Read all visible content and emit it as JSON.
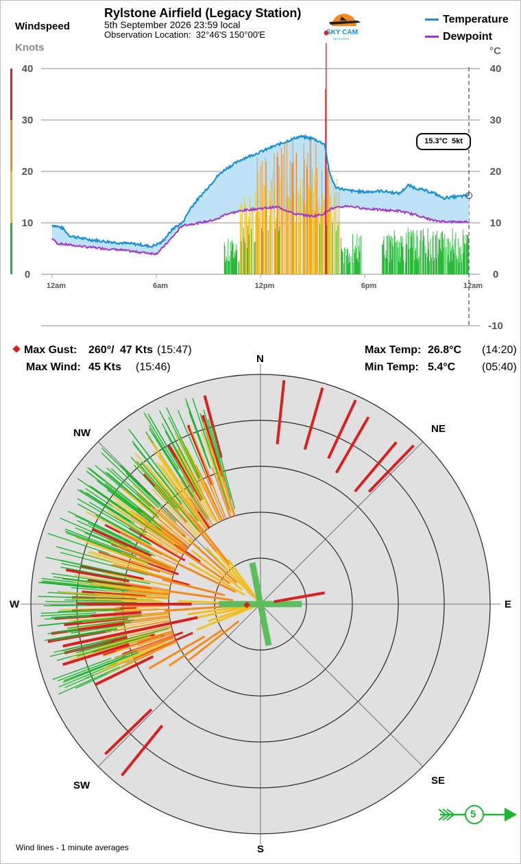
{
  "header": {
    "title": "Rylstone Airfield (Legacy Station)",
    "date_line": "5th September 2026  23:59 local",
    "location_label": "Observation Location:",
    "location_value": "32°46'S 150°00'E",
    "logo_text": "SKY CAM",
    "logo_subtext": "NETWORKS"
  },
  "left_axis": {
    "title": "Windspeed",
    "unit": "Knots"
  },
  "right_axis": {
    "unit": "°C"
  },
  "legend": [
    {
      "label": "Temperature",
      "color": "#1a8fd6"
    },
    {
      "label": "Dewpoint",
      "color": "#a335c8"
    }
  ],
  "readout": {
    "temp": "15.3°C",
    "wind": "5kt"
  },
  "stats": {
    "gust_label": "Max Gust:",
    "gust_dir": "260°/",
    "gust_speed": "47 Kts",
    "gust_time": "(15:47)",
    "wind_label": "Max Wind:",
    "wind_speed": "45 Kts",
    "wind_time": "(15:46)",
    "maxtemp_label": "Max Temp:",
    "maxtemp_value": "26.8°C",
    "maxtemp_time": "(14:20)",
    "mintemp_label": "Min Temp:",
    "mintemp_value": "5.4°C",
    "mintemp_time": "(05:40)"
  },
  "compass": [
    "N",
    "NE",
    "E",
    "SE",
    "S",
    "SW",
    "W",
    "NW"
  ],
  "wind_flag": {
    "speed": "5"
  },
  "footer": {
    "note": "Wind lines - 1 minute averages"
  },
  "colors": {
    "green": "#1db52f",
    "yellow": "#f0c020",
    "orange": "#f5891e",
    "red": "#d9201e",
    "temp": "#1a8fd6",
    "dew": "#a335c8",
    "fill": "#bfe3f6",
    "rose_bg": "#e0e0e0"
  },
  "chart_data": [
    {
      "type": "line",
      "x_ticks": [
        "12am",
        "6am",
        "12pm",
        "6pm",
        "12am"
      ],
      "x_range_hours": [
        0,
        24
      ],
      "y_left": {
        "label": "Knots",
        "ticks": [
          0,
          10,
          20,
          30,
          40
        ],
        "range": [
          0,
          40
        ]
      },
      "y_right": {
        "label": "°C",
        "ticks": [
          -10,
          0,
          10,
          20,
          30,
          40
        ],
        "range": [
          -10,
          40
        ]
      },
      "series": [
        {
          "name": "Temperature",
          "axis": "right",
          "points": [
            [
              0,
              9.6
            ],
            [
              0.6,
              9
            ],
            [
              1,
              7.5
            ],
            [
              2,
              6.8
            ],
            [
              3,
              6.4
            ],
            [
              4,
              6.1
            ],
            [
              5,
              5.8
            ],
            [
              5.7,
              5.4
            ],
            [
              6.3,
              6.2
            ],
            [
              7,
              9
            ],
            [
              7.5,
              10
            ],
            [
              8,
              13
            ],
            [
              9,
              17
            ],
            [
              9.5,
              19
            ],
            [
              10,
              20.5
            ],
            [
              11,
              22.5
            ],
            [
              12,
              23.8
            ],
            [
              13,
              25.2
            ],
            [
              14,
              26.5
            ],
            [
              14.3,
              26.8
            ],
            [
              15,
              26.4
            ],
            [
              15.7,
              25.3
            ],
            [
              15.95,
              20
            ],
            [
              16.3,
              17
            ],
            [
              17,
              16.3
            ],
            [
              18,
              16
            ],
            [
              19,
              16.2
            ],
            [
              20,
              15.7
            ],
            [
              20.5,
              17.3
            ],
            [
              21,
              16.7
            ],
            [
              22,
              15.8
            ],
            [
              22.5,
              14.8
            ],
            [
              23,
              15
            ],
            [
              24,
              15.3
            ]
          ]
        },
        {
          "name": "Dewpoint",
          "axis": "right",
          "points": [
            [
              0,
              7
            ],
            [
              0.3,
              6
            ],
            [
              1,
              5.7
            ],
            [
              2,
              5.3
            ],
            [
              3,
              5
            ],
            [
              4,
              4.7
            ],
            [
              5,
              4.3
            ],
            [
              6,
              4
            ],
            [
              6.3,
              4.9
            ],
            [
              7,
              7.5
            ],
            [
              7.5,
              9.5
            ],
            [
              8.5,
              10
            ],
            [
              9.5,
              10.7
            ],
            [
              10,
              11.7
            ],
            [
              11,
              12.4
            ],
            [
              12,
              12.8
            ],
            [
              13,
              13.1
            ],
            [
              13.5,
              12.4
            ],
            [
              14,
              11.7
            ],
            [
              15,
              11.3
            ],
            [
              15.6,
              11.7
            ],
            [
              16,
              12.7
            ],
            [
              16.5,
              13
            ],
            [
              17,
              13.3
            ],
            [
              18,
              12.8
            ],
            [
              19,
              12.5
            ],
            [
              20,
              12.3
            ],
            [
              21,
              11.5
            ],
            [
              22,
              10.4
            ],
            [
              23,
              10.2
            ],
            [
              24,
              10.2
            ]
          ]
        },
        {
          "name": "Wind speed",
          "axis": "left",
          "type": "bar",
          "segments": [
            {
              "from": 0,
              "to": 9.9,
              "min": 0,
              "max": 0
            },
            {
              "from": 9.9,
              "to": 10.8,
              "min": 2,
              "max": 7
            },
            {
              "from": 10.8,
              "to": 11.8,
              "min": 5,
              "max": 16
            },
            {
              "from": 11.8,
              "to": 13.2,
              "min": 8,
              "max": 24
            },
            {
              "from": 13.2,
              "to": 15.2,
              "min": 10,
              "max": 27
            },
            {
              "from": 15.2,
              "to": 16.6,
              "min": 8,
              "max": 21
            },
            {
              "from": 16.6,
              "to": 17.8,
              "min": 2,
              "max": 8
            },
            {
              "from": 17.8,
              "to": 19.0,
              "min": 0,
              "max": 0
            },
            {
              "from": 19.0,
              "to": 24.0,
              "min": 2,
              "max": 9
            }
          ],
          "peaks": [
            [
              15.78,
              45
            ],
            [
              15.75,
              36
            ]
          ]
        }
      ]
    },
    {
      "type": "scatter",
      "kind": "wind-rose",
      "ring_kts": [
        10,
        20,
        30,
        40,
        50
      ],
      "max_kts": 50,
      "speed_colors": [
        [
          10,
          "#1db52f"
        ],
        [
          20,
          "#f0c020"
        ],
        [
          30,
          "#f5891e"
        ],
        [
          99,
          "#d9201e"
        ]
      ],
      "calm_marker": {
        "dirs_deg": [
          0,
          90,
          180,
          270
        ],
        "len_kts": [
          9,
          9,
          9,
          9
        ],
        "color": "#5bbd5b"
      },
      "samples": [
        [
          345,
          47
        ],
        [
          343,
          43
        ],
        [
          338,
          42
        ],
        [
          330,
          40
        ],
        [
          326,
          34
        ],
        [
          322,
          25
        ],
        [
          320,
          22
        ],
        [
          318,
          38
        ],
        [
          312,
          36
        ],
        [
          308,
          34
        ],
        [
          305,
          30
        ],
        [
          300,
          33
        ],
        [
          297,
          38
        ],
        [
          294,
          40
        ],
        [
          292,
          35
        ],
        [
          290,
          33
        ],
        [
          288,
          37
        ],
        [
          285,
          30
        ],
        [
          282,
          40
        ],
        [
          280,
          43
        ],
        [
          278,
          38
        ],
        [
          276,
          35
        ],
        [
          274,
          39
        ],
        [
          272,
          41
        ],
        [
          270,
          40
        ],
        [
          268,
          41
        ],
        [
          266,
          45
        ],
        [
          264,
          43
        ],
        [
          262,
          46
        ],
        [
          260,
          47
        ],
        [
          258,
          42
        ],
        [
          256,
          44
        ],
        [
          254,
          38
        ],
        [
          252,
          36
        ],
        [
          250,
          32
        ],
        [
          247,
          30
        ],
        [
          244,
          40
        ],
        [
          240,
          28
        ],
        [
          236,
          24
        ],
        [
          232,
          20
        ],
        [
          296,
          20
        ],
        [
          300,
          18
        ],
        [
          304,
          22
        ],
        [
          308,
          19
        ],
        [
          312,
          21
        ],
        [
          316,
          17
        ],
        [
          320,
          15
        ],
        [
          324,
          12
        ],
        [
          284,
          22
        ],
        [
          278,
          20
        ],
        [
          272,
          18
        ],
        [
          266,
          21
        ],
        [
          262,
          16
        ],
        [
          258,
          14
        ],
        [
          252,
          12
        ],
        [
          248,
          15
        ],
        [
          6,
          49
        ],
        [
          16,
          49
        ],
        [
          25,
          49
        ],
        [
          30,
          47
        ],
        [
          40,
          46
        ],
        [
          44,
          48
        ],
        [
          226,
          47
        ],
        [
          219,
          48
        ]
      ],
      "max_gust_dir_deg": 260
    }
  ]
}
